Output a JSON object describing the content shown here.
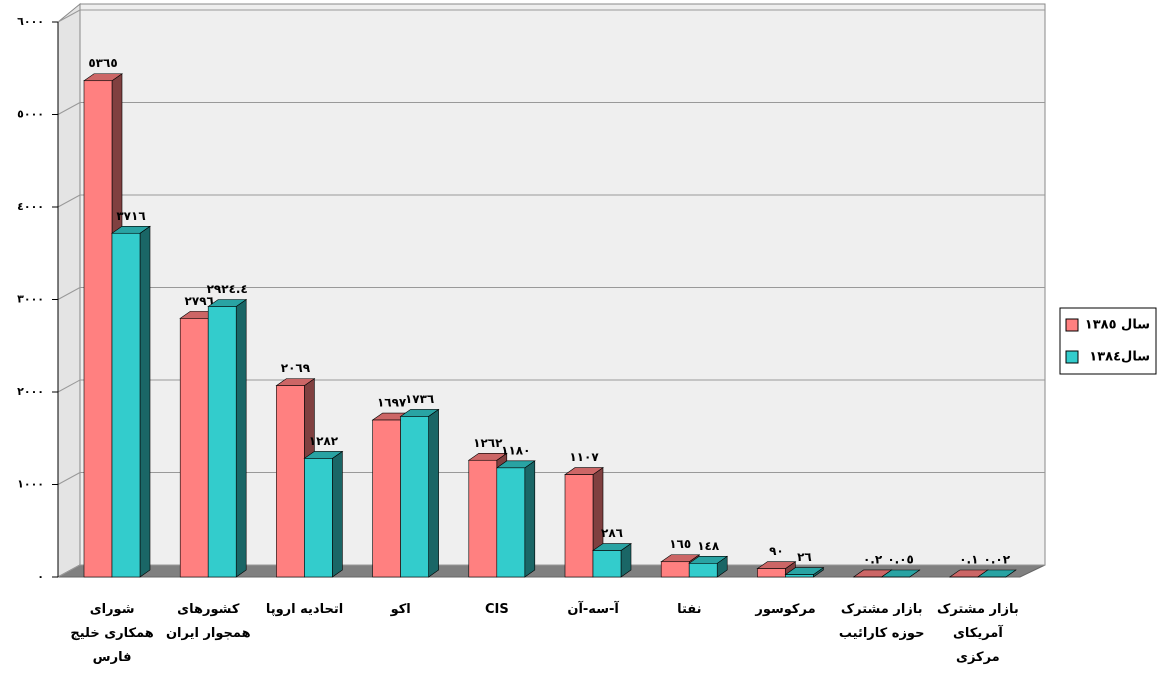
{
  "chart_data": {
    "type": "bar3d",
    "categories": [
      "شورای همکاری خلیج فارس",
      "کشورهای همجوار ایران",
      "اتحادیه اروپا",
      "اکو",
      "CIS",
      "آ-سه-آن",
      "نفتا",
      "مرکوسور",
      "بازار مشترک حوزه کارائیب",
      "بازار مشترک آمریکای مرکزی"
    ],
    "series": [
      {
        "name": "سال ١٣٨٥",
        "color": "#ff8080",
        "values": [
          5365,
          2796,
          2069,
          1697,
          1262,
          1107,
          165,
          90,
          0.2,
          0.1
        ],
        "value_labels": [
          "٥٣٦٥",
          "٢٧٩٦",
          "٢٠٦٩",
          "١٦٩٧",
          "١٢٦٢",
          "١١٠٧",
          "١٦٥",
          "٩٠",
          "٠.٢",
          "٠.١"
        ]
      },
      {
        "name": "سال١٣٨٤",
        "color": "#33cccc",
        "values": [
          3716,
          2924.4,
          1282,
          1736,
          1180,
          286,
          148,
          26,
          0.05,
          0.02
        ],
        "value_labels": [
          "٣٧١٦",
          "٢٩٢٤.٤",
          "١٢٨٢",
          "١٧٣٦",
          "١١٨٠",
          "٢٨٦",
          "١٤٨",
          "٢٦",
          "٠.٠٥",
          "٠.٠٢"
        ]
      }
    ],
    "ylim": [
      0,
      6000
    ],
    "yticks": [
      {
        "value": 0,
        "label": "٠"
      },
      {
        "value": 1000,
        "label": "١٠٠٠"
      },
      {
        "value": 2000,
        "label": "٢٠٠٠"
      },
      {
        "value": 3000,
        "label": "٣٠٠٠"
      },
      {
        "value": 4000,
        "label": "٤٠٠٠"
      },
      {
        "value": 5000,
        "label": "٥٠٠٠"
      },
      {
        "value": 6000,
        "label": "٦٠٠٠"
      }
    ],
    "grid": true,
    "legend": "right"
  }
}
